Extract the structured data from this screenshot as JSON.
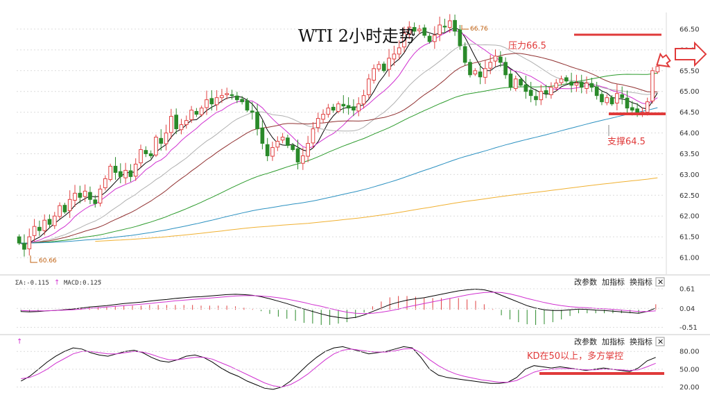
{
  "title": "WTI 2小时走势",
  "menu": {
    "params": "改参数",
    "add": "加指标",
    "swap": "换指标",
    "close": "✕"
  },
  "price_axis": {
    "ticks": [
      "66.50",
      "66.00",
      "65.50",
      "65.00",
      "64.50",
      "64.00",
      "63.50",
      "63.00",
      "62.50",
      "62.00",
      "61.50",
      "61.00"
    ]
  },
  "macd_axis": {
    "ticks": [
      "0.61",
      "0.04",
      "-0.51"
    ]
  },
  "kd_axis": {
    "ticks": [
      "80.00",
      "50.00",
      "20.00"
    ]
  },
  "macd_label": {
    "dif": "ΣA:-0.115",
    "macd": "MACD:0.125"
  },
  "kd_label": {
    "mark": "↑"
  },
  "annotations": {
    "resistance": "压力66.5",
    "support": "支撑64.5",
    "kd_note": "KD在50以上，多方掌控",
    "high": "66.76",
    "low": "60.66"
  },
  "colors": {
    "up": "#e04040",
    "down": "#2a8a2a",
    "ma5": "#000000",
    "ma10": "#d030d0",
    "ma20": "#b0b0b0",
    "ma30": "#903030",
    "ma60": "#2a9a2a",
    "ma120": "#2a90c0",
    "ma250": "#f0b030",
    "annotation": "#e03a3a",
    "extreme": "#c06010"
  },
  "chart_data": {
    "type": "candlestick",
    "title": "WTI 2小时走势",
    "ylim": [
      60.6,
      66.9
    ],
    "resistance": 66.5,
    "support": 64.5,
    "high": 66.76,
    "low": 60.66,
    "close": [
      61.35,
      61.2,
      61.5,
      61.75,
      61.65,
      61.9,
      61.8,
      62.0,
      62.25,
      62.1,
      62.4,
      62.55,
      62.45,
      62.6,
      62.4,
      62.3,
      62.65,
      62.9,
      63.2,
      63.05,
      62.95,
      63.1,
      62.95,
      63.25,
      63.6,
      63.5,
      63.45,
      63.9,
      63.75,
      64.0,
      64.4,
      64.1,
      64.2,
      64.3,
      64.55,
      64.45,
      64.6,
      64.8,
      64.7,
      64.85,
      64.9,
      64.95,
      64.9,
      64.8,
      64.75,
      64.55,
      64.5,
      64.1,
      63.75,
      63.45,
      63.65,
      63.8,
      63.9,
      63.7,
      63.6,
      63.3,
      63.45,
      63.75,
      64.1,
      64.35,
      64.45,
      64.6,
      64.55,
      64.7,
      64.65,
      64.6,
      64.55,
      64.7,
      64.9,
      65.3,
      65.55,
      65.65,
      65.5,
      65.8,
      65.9,
      66.05,
      66.4,
      66.55,
      66.45,
      66.5,
      66.35,
      66.2,
      66.35,
      66.6,
      66.55,
      66.7,
      66.45,
      66.1,
      65.7,
      65.4,
      65.5,
      65.35,
      65.55,
      65.7,
      65.85,
      65.7,
      65.4,
      65.1,
      65.3,
      65.15,
      65.0,
      64.9,
      64.8,
      65.0,
      64.95,
      65.1,
      65.2,
      65.3,
      65.25,
      65.15,
      65.2,
      65.1,
      65.2,
      65.1,
      64.9,
      64.75,
      64.85,
      64.7,
      64.95,
      64.85,
      64.6,
      64.55,
      64.5,
      64.5,
      64.75,
      65.5,
      65.6
    ],
    "macd": {
      "dif": [
        -0.05,
        -0.06,
        -0.05,
        -0.03,
        -0.02,
        0.0,
        0.02,
        0.05,
        0.08,
        0.1,
        0.12,
        0.15,
        0.18,
        0.2,
        0.22,
        0.25,
        0.28,
        0.3,
        0.33,
        0.35,
        0.37,
        0.38,
        0.4,
        0.42,
        0.44,
        0.45,
        0.44,
        0.42,
        0.38,
        0.32,
        0.25,
        0.18,
        0.1,
        0.02,
        -0.05,
        -0.12,
        -0.18,
        -0.22,
        -0.25,
        -0.22,
        -0.15,
        -0.05,
        0.05,
        0.15,
        0.22,
        0.28,
        0.32,
        0.35,
        0.4,
        0.45,
        0.5,
        0.55,
        0.58,
        0.6,
        0.58,
        0.52,
        0.42,
        0.32,
        0.22,
        0.12,
        0.05,
        0.0,
        -0.02,
        -0.02,
        0.0,
        0.02,
        0.01,
        -0.01,
        -0.02,
        -0.04,
        -0.06,
        -0.08,
        -0.1,
        -0.05,
        0.05
      ],
      "dea": [
        -0.02,
        -0.03,
        -0.03,
        -0.03,
        -0.02,
        -0.01,
        0.0,
        0.02,
        0.04,
        0.06,
        0.08,
        0.1,
        0.12,
        0.14,
        0.16,
        0.18,
        0.21,
        0.23,
        0.26,
        0.28,
        0.3,
        0.32,
        0.34,
        0.36,
        0.38,
        0.4,
        0.41,
        0.41,
        0.4,
        0.38,
        0.35,
        0.31,
        0.26,
        0.21,
        0.15,
        0.1,
        0.04,
        -0.02,
        -0.07,
        -0.1,
        -0.11,
        -0.1,
        -0.07,
        -0.03,
        0.02,
        0.08,
        0.13,
        0.18,
        0.23,
        0.28,
        0.33,
        0.38,
        0.43,
        0.47,
        0.5,
        0.51,
        0.5,
        0.46,
        0.4,
        0.33,
        0.27,
        0.21,
        0.16,
        0.12,
        0.09,
        0.07,
        0.06,
        0.04,
        0.03,
        0.01,
        -0.01,
        -0.03,
        -0.05,
        -0.05,
        -0.03
      ]
    },
    "kd": {
      "k": [
        30,
        38,
        50,
        62,
        72,
        80,
        86,
        84,
        78,
        74,
        72,
        76,
        80,
        82,
        78,
        70,
        64,
        62,
        66,
        72,
        74,
        70,
        62,
        52,
        44,
        38,
        30,
        24,
        18,
        16,
        20,
        30,
        44,
        58,
        70,
        80,
        86,
        88,
        84,
        80,
        76,
        78,
        80,
        84,
        88,
        86,
        70,
        50,
        40,
        36,
        34,
        32,
        30,
        28,
        26,
        26,
        28,
        36,
        50,
        56,
        54,
        52,
        54,
        52,
        50,
        48,
        50,
        52,
        50,
        48,
        46,
        52,
        64,
        70
      ],
      "d": [
        34,
        36,
        42,
        50,
        60,
        68,
        76,
        80,
        80,
        78,
        76,
        76,
        78,
        80,
        79,
        75,
        70,
        66,
        66,
        68,
        70,
        70,
        67,
        61,
        55,
        48,
        41,
        34,
        27,
        22,
        20,
        24,
        32,
        42,
        54,
        66,
        76,
        82,
        84,
        82,
        80,
        79,
        79,
        81,
        84,
        85,
        78,
        66,
        56,
        48,
        42,
        38,
        35,
        32,
        30,
        28,
        28,
        31,
        38,
        45,
        49,
        50,
        51,
        51,
        50,
        49,
        49,
        50,
        50,
        49,
        48,
        49,
        54,
        60
      ]
    }
  }
}
